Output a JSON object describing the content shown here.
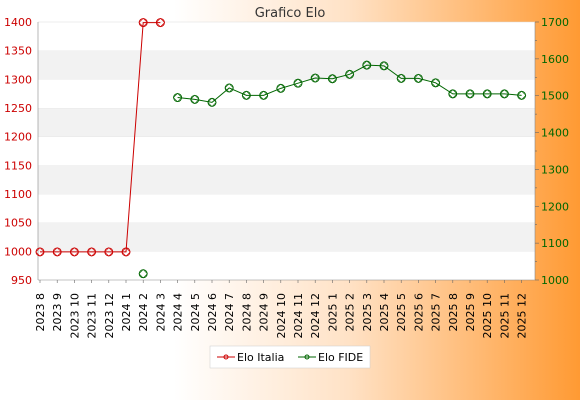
{
  "chart_data": {
    "type": "line",
    "title": "Grafico Elo",
    "categories": [
      "2023 8",
      "2023 9",
      "2023 10",
      "2023 11",
      "2023 12",
      "2024 1",
      "2024 2",
      "2024 3",
      "2024 4",
      "2024 5",
      "2024 6",
      "2024 7",
      "2024 8",
      "2024 9",
      "2024 10",
      "2024 11",
      "2024 12",
      "2025 1",
      "2025 2",
      "2025 3",
      "2025 4",
      "2025 5",
      "2025 6",
      "2025 7",
      "2025 8",
      "2025 9",
      "2025 10",
      "2025 11",
      "2025 12"
    ],
    "y_left": {
      "ticks": [
        950,
        1000,
        1050,
        1100,
        1150,
        1200,
        1250,
        1300,
        1350,
        1400
      ],
      "ylim": [
        950,
        1400
      ],
      "color": "#cc0000"
    },
    "y_right": {
      "ticks": [
        1000,
        1100,
        1200,
        1300,
        1400,
        1500,
        1600,
        1700
      ],
      "ylim": [
        1000,
        1700
      ],
      "color": "#006600"
    },
    "series": [
      {
        "name": "Elo Italia",
        "axis": "left",
        "color": "#cc0000",
        "values": [
          999,
          999,
          999,
          999,
          999,
          999,
          1399,
          1399,
          null,
          null,
          null,
          null,
          null,
          null,
          null,
          null,
          null,
          null,
          null,
          null,
          null,
          null,
          null,
          null,
          null,
          null,
          null,
          null,
          null
        ]
      },
      {
        "name": "Elo FIDE",
        "axis": "right",
        "color": "#006600",
        "values": [
          null,
          null,
          null,
          null,
          null,
          null,
          1017,
          null,
          1495,
          1490,
          1482,
          1521,
          1501,
          1501,
          1520,
          1534,
          1548,
          1546,
          1558,
          1583,
          1581,
          1547,
          1547,
          1535,
          1505,
          1505,
          1505,
          1505,
          1501
        ]
      }
    ],
    "legend_position": "bottom-center",
    "grid": "horizontal-bands"
  }
}
